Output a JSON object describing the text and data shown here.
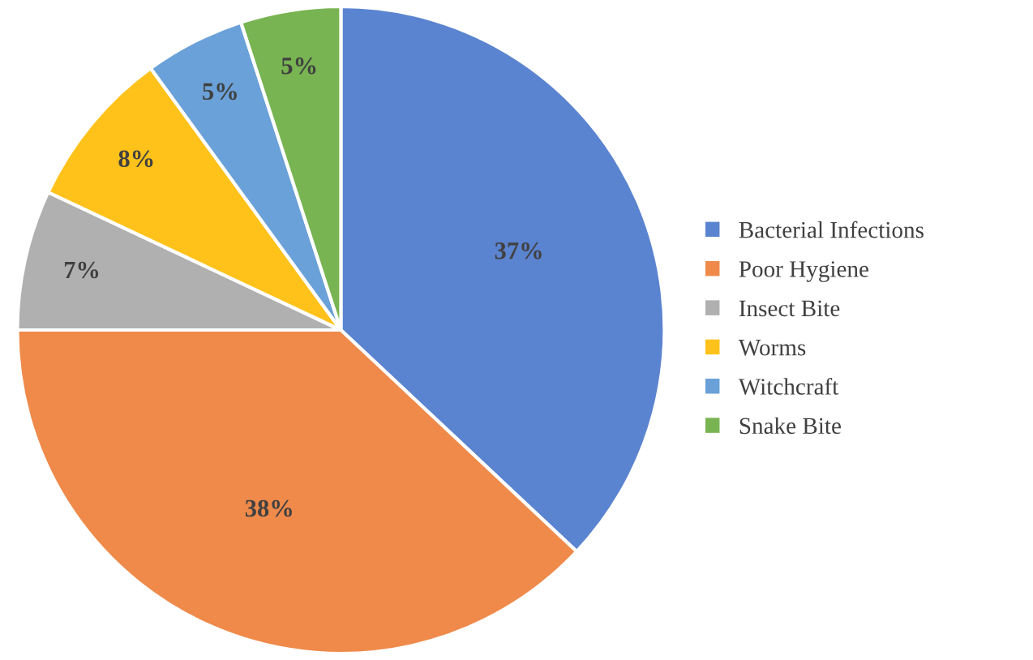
{
  "chart_data": {
    "type": "pie",
    "categories": [
      "Bacterial Infections",
      "Poor Hygiene",
      "Insect Bite",
      "Worms",
      "Witchcraft",
      "Snake Bite"
    ],
    "values": [
      37,
      38,
      7,
      8,
      5,
      5
    ],
    "colors": [
      "#5b84d0",
      "#ef8a4a",
      "#b0b0b0",
      "#ffc21a",
      "#6aa1d8",
      "#78b452"
    ],
    "value_labels": [
      "37%",
      "38%",
      "7%",
      "8%",
      "5%",
      "5%"
    ],
    "legend": "right"
  }
}
